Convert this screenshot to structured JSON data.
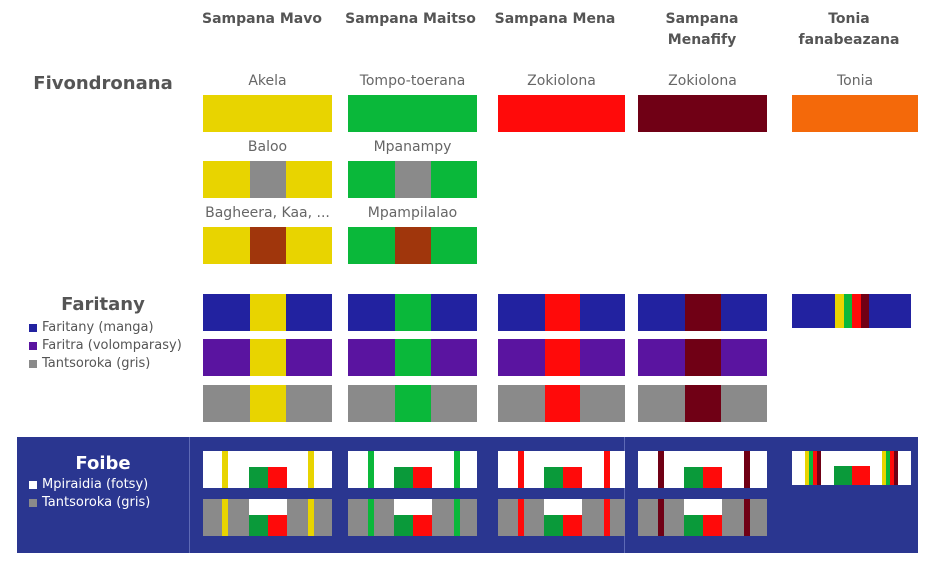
{
  "columns": [
    {
      "id": "mavo",
      "label": "Sampana Mavo"
    },
    {
      "id": "maitso",
      "label": "Sampana Maitso"
    },
    {
      "id": "mena",
      "label": "Sampana Mena"
    },
    {
      "id": "menafify",
      "label": "Sampana Menafify"
    },
    {
      "id": "tonia",
      "label": "Tonia fanabeazana"
    }
  ],
  "colors": {
    "mavo": "#e8d400",
    "maitso": "#0ab83a",
    "mena": "#ff0a0a",
    "menafify": "#700015",
    "tonia": "#f4690a",
    "manga": "#2222a0",
    "volomparasy": "#5a14a0",
    "gris": "#8a8a8a",
    "brown": "#a0360c",
    "fotsy": "#ffffff",
    "foibe_bg": "#2a3690"
  },
  "fivondronana": {
    "title": "Fivondronana",
    "labels": {
      "mavo_1": "Akela",
      "mavo_2": "Baloo",
      "mavo_3": "Bagheera, Kaa, ...",
      "maitso_1": "Tompo-toerana",
      "maitso_2": "Mpanampy",
      "maitso_3": "Mpampilalao",
      "mena_1": "Zokiolona",
      "menafify_1": "Zokiolona",
      "tonia_1": "Tonia"
    }
  },
  "faritany": {
    "title": "Faritany",
    "legend": [
      {
        "color_key": "manga",
        "label": "Faritany (manga)"
      },
      {
        "color_key": "volomparasy",
        "label": "Faritra (volomparasy)"
      },
      {
        "color_key": "gris",
        "label": "Tantsoroka (gris)"
      }
    ]
  },
  "foibe": {
    "title": "Foibe",
    "legend": [
      {
        "color_key": "fotsy",
        "label": "Mpiraidia (fotsy)"
      },
      {
        "color_key": "gris",
        "label": "Tantsoroka (gris)"
      }
    ]
  }
}
